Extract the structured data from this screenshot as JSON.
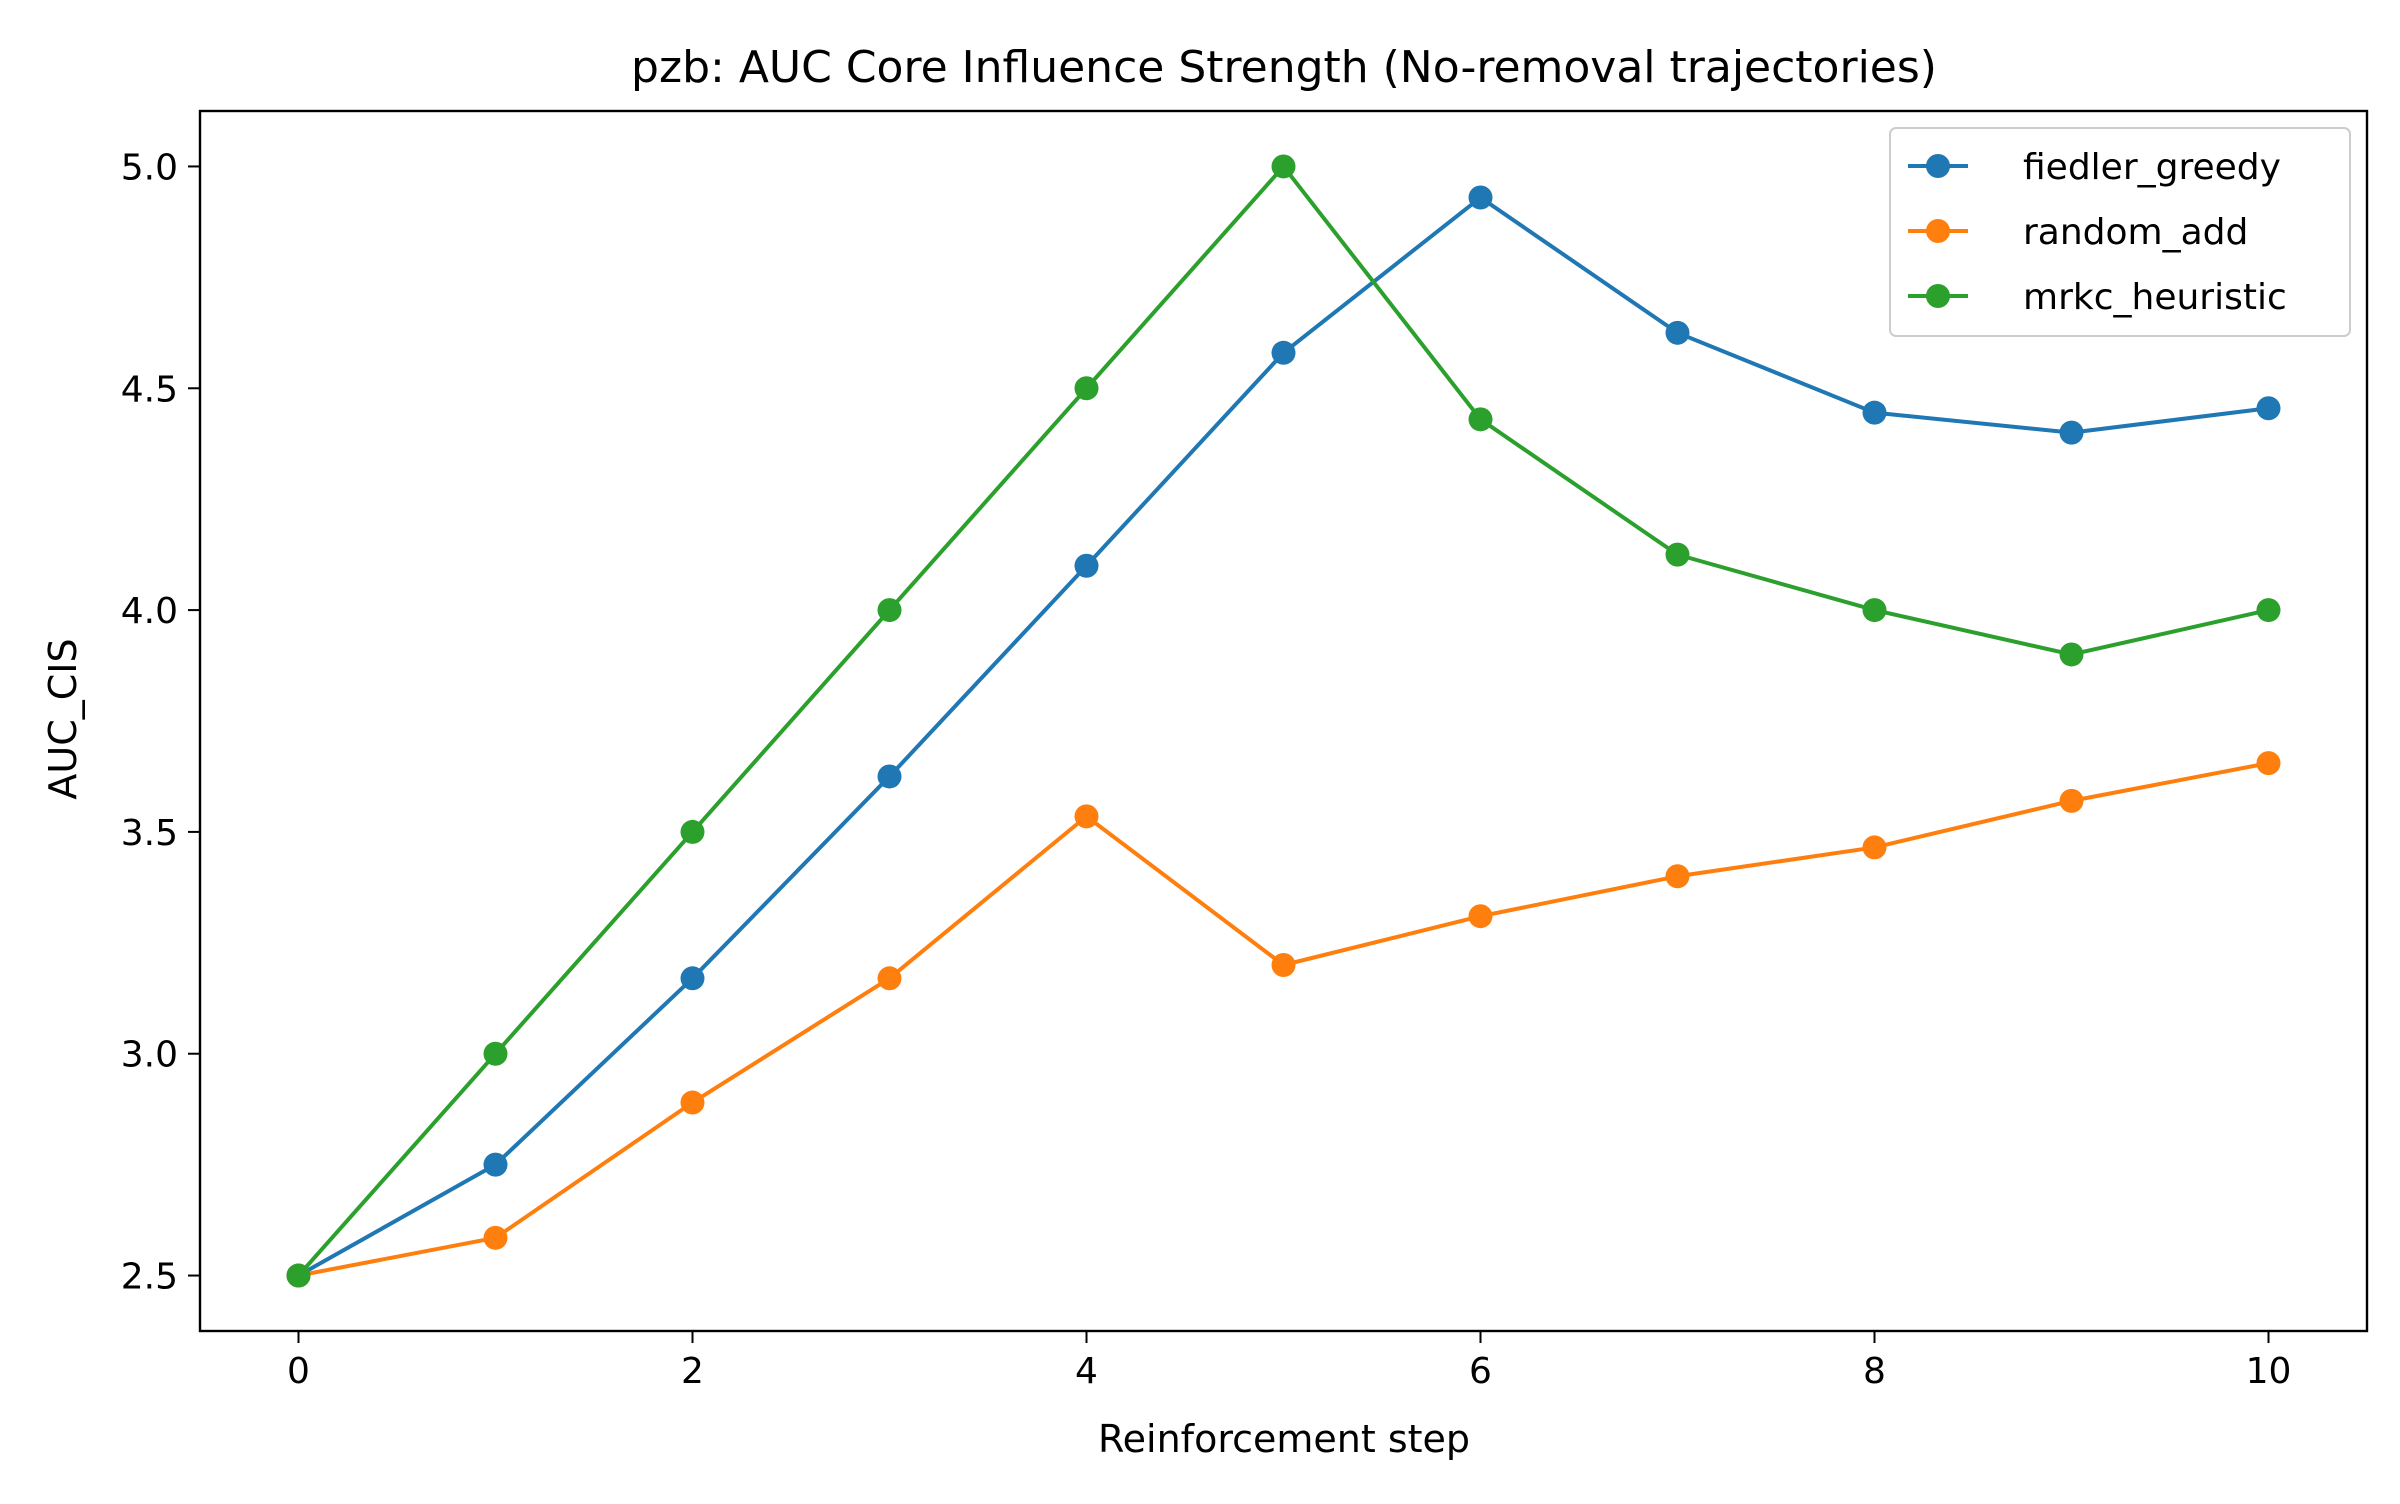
{
  "chart_data": {
    "type": "line",
    "title": "pzb: AUC Core Influence Strength (No-removal trajectories)",
    "xlabel": "Reinforcement step",
    "ylabel": "AUC_CIS",
    "xlim": [
      -0.5,
      10.5
    ],
    "ylim": [
      2.375,
      5.125
    ],
    "xticks": [
      "0",
      "2",
      "4",
      "6",
      "8",
      "10"
    ],
    "xtick_values": [
      0,
      2,
      4,
      6,
      8,
      10
    ],
    "yticks": [
      "2.5",
      "3.0",
      "3.5",
      "4.0",
      "4.5",
      "5.0"
    ],
    "ytick_values": [
      2.5,
      3.0,
      3.5,
      4.0,
      4.5,
      5.0
    ],
    "grid": false,
    "legend_position": "top-right",
    "x": [
      0,
      1,
      2,
      3,
      4,
      5,
      6,
      7,
      8,
      9,
      10
    ],
    "series": [
      {
        "name": "fiedler_greedy",
        "color": "#1f77b4",
        "values": [
          2.5,
          2.75,
          3.17,
          3.625,
          4.1,
          4.58,
          4.93,
          4.625,
          4.445,
          4.4,
          4.455
        ]
      },
      {
        "name": "random_add",
        "color": "#ff7f0e",
        "values": [
          2.5,
          2.585,
          2.89,
          3.17,
          3.535,
          3.2,
          3.31,
          3.4,
          3.465,
          3.57,
          3.655
        ]
      },
      {
        "name": "mrkc_heuristic",
        "color": "#2ca02c",
        "values": [
          2.5,
          3.0,
          3.5,
          4.0,
          4.5,
          5.0,
          4.43,
          4.125,
          4.0,
          3.9,
          4.0
        ]
      }
    ]
  }
}
